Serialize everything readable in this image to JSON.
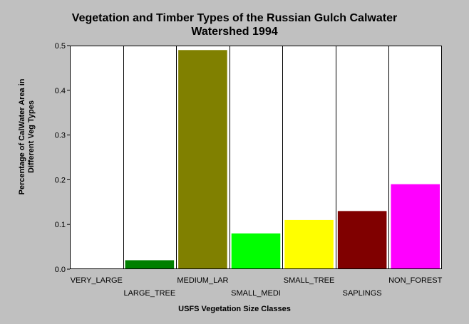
{
  "chart_data": {
    "type": "bar",
    "title_lines": [
      "Vegetation and Timber Types of the Russian Gulch Calwater",
      "Watershed 1994"
    ],
    "ylabel_lines": [
      "Percentage of CalWater Area in",
      "Different Veg Types"
    ],
    "xlabel": "USFS Vegetation Size Classes",
    "categories": [
      "VERY_LARGE",
      "LARGE_TREE",
      "MEDIUM_LAR",
      "SMALL_MEDI",
      "SMALL_TREE",
      "SAPLINGS",
      "NON_FOREST"
    ],
    "values": [
      0,
      0.02,
      0.49,
      0.08,
      0.11,
      0.13,
      0.19
    ],
    "colors": [
      "#008000",
      "#008000",
      "#808000",
      "#00ff00",
      "#ffff00",
      "#800000",
      "#ff00ff"
    ],
    "ylim": [
      0,
      0.5
    ],
    "yticks": [
      0.0,
      0.1,
      0.2,
      0.3,
      0.4,
      0.5
    ],
    "ytick_labels": [
      "0.0",
      "0.1",
      "0.2",
      "0.3",
      "0.4",
      "0.5"
    ],
    "grid": "vertical",
    "legend": "none"
  }
}
